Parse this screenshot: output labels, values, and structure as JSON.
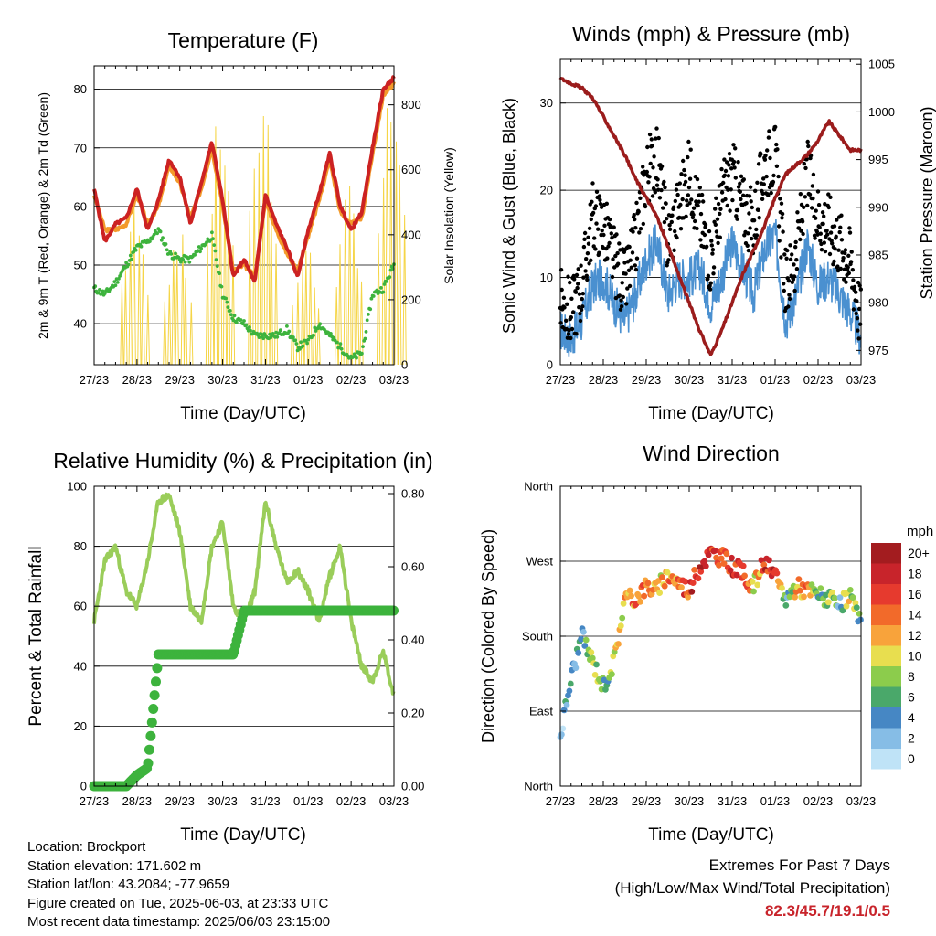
{
  "panels": {
    "temperature": {
      "title": "Temperature (F)",
      "ylabel_left": "2m & 9m T (Red, Orange) & 2m Td (Green)",
      "ylabel_right": "Solar Insolation (Yellow)",
      "xlabel": "Time (Day/UTC)"
    },
    "winds": {
      "title": "Winds (mph) & Pressure (mb)",
      "ylabel_left": "Sonic Wind & Gust (Blue, Black)",
      "ylabel_right": "Station Pressure (Maroon)",
      "xlabel": "Time (Day/UTC)"
    },
    "humidity": {
      "title": "Relative Humidity (%) & Precipitation (in)",
      "ylabel_left": "Percent & Total Rainfall",
      "xlabel": "Time (Day/UTC)"
    },
    "direction": {
      "title": "Wind Direction",
      "ylabel_left": "Direction (Colored By Speed)",
      "xlabel": "Time (Day/UTC)",
      "colorbar_title": "mph"
    }
  },
  "info": {
    "location": "Location: Brockport",
    "elevation": "Station elevation: 171.602 m",
    "latlon": "Station lat/lon: 43.2084; -77.9659",
    "created": "Figure created on Tue, 2025-06-03, at 23:33 UTC",
    "recent": "Most recent data timestamp: 2025/06/03 23:15:00"
  },
  "extremes": {
    "heading": "Extremes For Past 7 Days",
    "subheading": "(High/Low/Max Wind/Total Precipitation)",
    "values": "82.3/45.7/19.1/0.5"
  },
  "colors": {
    "temp_2m": "#cc2222",
    "temp_9m": "#f39a2b",
    "dewpoint": "#3db33d",
    "solar": "#f5d547",
    "wind": "#4a90d0",
    "gust": "#000000",
    "pressure": "#9b1c1c",
    "rh": "#9acd5a",
    "precip": "#3db33d"
  },
  "chart_data": [
    {
      "type": "line",
      "title": "Temperature (F)",
      "xlabel": "Time (Day/UTC)",
      "ylabel": "2m & 9m T (Red, Orange) & 2m Td (Green)",
      "ylabel_right": "Solar Insolation (Yellow)",
      "x_ticks": [
        "27/23",
        "28/23",
        "29/23",
        "30/23",
        "31/23",
        "01/23",
        "02/23",
        "03/23"
      ],
      "x": [
        0,
        0.25,
        0.5,
        0.75,
        1,
        1.25,
        1.5,
        1.75,
        2,
        2.25,
        2.5,
        2.75,
        3,
        3.25,
        3.5,
        3.75,
        4,
        4.25,
        4.5,
        4.75,
        5,
        5.25,
        5.5,
        5.75,
        6,
        6.25,
        6.5,
        6.75,
        7
      ],
      "ylim": [
        33,
        84
      ],
      "y_ticks": [
        40,
        50,
        60,
        70,
        80
      ],
      "y2lim": [
        0,
        920
      ],
      "y2_ticks": [
        0,
        200,
        400,
        600,
        800
      ],
      "series": [
        {
          "name": "2m T",
          "axis": "left",
          "values": [
            63,
            54,
            57,
            58,
            63,
            56,
            61,
            68,
            65,
            57,
            64,
            71,
            61,
            48,
            51,
            47,
            62,
            57,
            53,
            48,
            56,
            62,
            69,
            60,
            56,
            59,
            70,
            80,
            82
          ]
        },
        {
          "name": "9m T",
          "axis": "left",
          "values": [
            62,
            56,
            56,
            57,
            62,
            57,
            60,
            67,
            64,
            58,
            63,
            70,
            60,
            49,
            50,
            48,
            61,
            56,
            52,
            49,
            55,
            61,
            68,
            59,
            57,
            58,
            69,
            79,
            81
          ]
        },
        {
          "name": "2m Td",
          "axis": "left",
          "values": [
            46,
            45,
            47,
            50,
            53,
            54,
            56,
            52,
            51,
            51,
            53,
            55,
            45,
            41,
            40,
            38,
            38,
            38,
            39,
            36,
            37,
            40,
            38,
            36,
            34,
            35,
            45,
            46,
            50
          ]
        },
        {
          "name": "Solar Insolation",
          "axis": "right",
          "type": "spikes",
          "peaks": [
            {
              "x": 0.95,
              "value": 520
            },
            {
              "x": 1.95,
              "value": 450
            },
            {
              "x": 2.95,
              "value": 820
            },
            {
              "x": 3.95,
              "value": 900
            },
            {
              "x": 4.95,
              "value": 400
            },
            {
              "x": 5.95,
              "value": 570
            },
            {
              "x": 6.95,
              "value": 890
            }
          ]
        }
      ]
    },
    {
      "type": "line",
      "title": "Winds (mph) & Pressure (mb)",
      "xlabel": "Time (Day/UTC)",
      "ylabel": "Sonic Wind & Gust (Blue, Black)",
      "ylabel_right": "Station Pressure (Maroon)",
      "x_ticks": [
        "27/23",
        "28/23",
        "29/23",
        "30/23",
        "31/23",
        "01/23",
        "02/23",
        "03/23"
      ],
      "x": [
        0,
        0.25,
        0.5,
        0.75,
        1,
        1.25,
        1.5,
        1.75,
        2,
        2.25,
        2.5,
        2.75,
        3,
        3.25,
        3.5,
        3.75,
        4,
        4.25,
        4.5,
        4.75,
        5,
        5.25,
        5.5,
        5.75,
        6,
        6.25,
        6.5,
        6.75,
        7
      ],
      "ylim": [
        0,
        35
      ],
      "y_ticks": [
        0,
        10,
        20,
        30
      ],
      "y2lim": [
        973.5,
        1005.5
      ],
      "y2_ticks": [
        975,
        980,
        985,
        990,
        995,
        1000,
        1005
      ],
      "series": [
        {
          "name": "Sonic Wind",
          "axis": "left",
          "values": [
            4,
            3,
            5,
            9,
            10,
            7,
            5,
            8,
            12,
            14,
            8,
            10,
            10,
            11,
            7,
            10,
            14,
            11,
            8,
            13,
            15,
            5,
            8,
            14,
            9,
            10,
            8,
            6,
            3
          ]
        },
        {
          "name": "Gust",
          "axis": "left",
          "values": [
            7,
            6,
            9,
            17,
            16,
            12,
            9,
            14,
            22,
            24,
            14,
            18,
            22,
            17,
            12,
            19,
            22,
            18,
            16,
            23,
            24,
            9,
            13,
            22,
            17,
            16,
            14,
            12,
            5
          ]
        },
        {
          "name": "Station Pressure",
          "axis": "right",
          "values": [
            1003.5,
            1003,
            1002.5,
            1001.5,
            999.5,
            997.5,
            995.5,
            993,
            991,
            989,
            986,
            983,
            980,
            977,
            974.5,
            977,
            980,
            983,
            985.5,
            988,
            991,
            993.5,
            994.5,
            995.5,
            997,
            999,
            997.5,
            996,
            996
          ]
        }
      ]
    },
    {
      "type": "line",
      "title": "Relative Humidity (%) & Precipitation (in)",
      "xlabel": "Time (Day/UTC)",
      "ylabel": "Percent & Total Rainfall",
      "x_ticks": [
        "27/23",
        "28/23",
        "29/23",
        "30/23",
        "31/23",
        "01/23",
        "02/23",
        "03/23"
      ],
      "x": [
        0,
        0.25,
        0.5,
        0.75,
        1,
        1.25,
        1.5,
        1.75,
        2,
        2.25,
        2.5,
        2.75,
        3,
        3.25,
        3.5,
        3.75,
        4,
        4.25,
        4.5,
        4.75,
        5,
        5.25,
        5.5,
        5.75,
        6,
        6.25,
        6.5,
        6.75,
        7
      ],
      "ylim": [
        0,
        100
      ],
      "y_ticks": [
        0,
        20,
        40,
        60,
        80,
        100
      ],
      "y2lim": [
        0,
        0.82
      ],
      "y2_ticks": [
        "0.00",
        "0.20",
        "0.40",
        "0.60",
        "0.80"
      ],
      "series": [
        {
          "name": "RH",
          "axis": "left",
          "values": [
            55,
            75,
            80,
            65,
            60,
            75,
            95,
            97,
            85,
            60,
            55,
            80,
            88,
            60,
            55,
            65,
            95,
            80,
            68,
            72,
            65,
            55,
            70,
            80,
            55,
            40,
            35,
            45,
            30
          ]
        },
        {
          "name": "Precip",
          "axis": "right",
          "values": [
            0,
            0,
            0,
            0,
            0.03,
            0.05,
            0.36,
            0.36,
            0.36,
            0.36,
            0.36,
            0.36,
            0.36,
            0.36,
            0.48,
            0.48,
            0.48,
            0.48,
            0.48,
            0.48,
            0.48,
            0.48,
            0.48,
            0.48,
            0.48,
            0.48,
            0.48,
            0.48,
            0.48
          ]
        }
      ]
    },
    {
      "type": "scatter",
      "title": "Wind Direction",
      "xlabel": "Time (Day/UTC)",
      "ylabel": "Direction (Colored By Speed)",
      "x_ticks": [
        "27/23",
        "28/23",
        "29/23",
        "30/23",
        "31/23",
        "01/23",
        "02/23",
        "03/23"
      ],
      "ylim": [
        0,
        360
      ],
      "y_ticks": [
        "North",
        "East",
        "South",
        "West",
        "North"
      ],
      "x": [
        0,
        0.25,
        0.5,
        0.75,
        1,
        1.25,
        1.5,
        1.75,
        2,
        2.25,
        2.5,
        2.75,
        3,
        3.25,
        3.5,
        3.75,
        4,
        4.25,
        4.5,
        4.75,
        5,
        5.25,
        5.5,
        5.75,
        6,
        6.25,
        6.5,
        6.75,
        7
      ],
      "direction": [
        60,
        130,
        180,
        150,
        120,
        150,
        225,
        225,
        240,
        235,
        255,
        245,
        235,
        265,
        280,
        275,
        265,
        255,
        240,
        270,
        250,
        225,
        240,
        235,
        230,
        225,
        215,
        230,
        190
      ],
      "speed": [
        2,
        4,
        4,
        8,
        6,
        8,
        12,
        14,
        14,
        10,
        12,
        14,
        16,
        18,
        16,
        14,
        18,
        16,
        10,
        16,
        18,
        4,
        12,
        14,
        6,
        8,
        4,
        10,
        4
      ],
      "colorbar": {
        "title": "mph",
        "labels": [
          "20+",
          "18",
          "16",
          "14",
          "12",
          "10",
          "8",
          "6",
          "4",
          "2",
          "0"
        ],
        "colors": [
          "#a31c1f",
          "#c8242b",
          "#e63a2e",
          "#f26a2a",
          "#f8a33b",
          "#e8de4f",
          "#8ccc4c",
          "#4aa86a",
          "#4687c4",
          "#86bde6",
          "#bfe3f7"
        ]
      }
    }
  ]
}
